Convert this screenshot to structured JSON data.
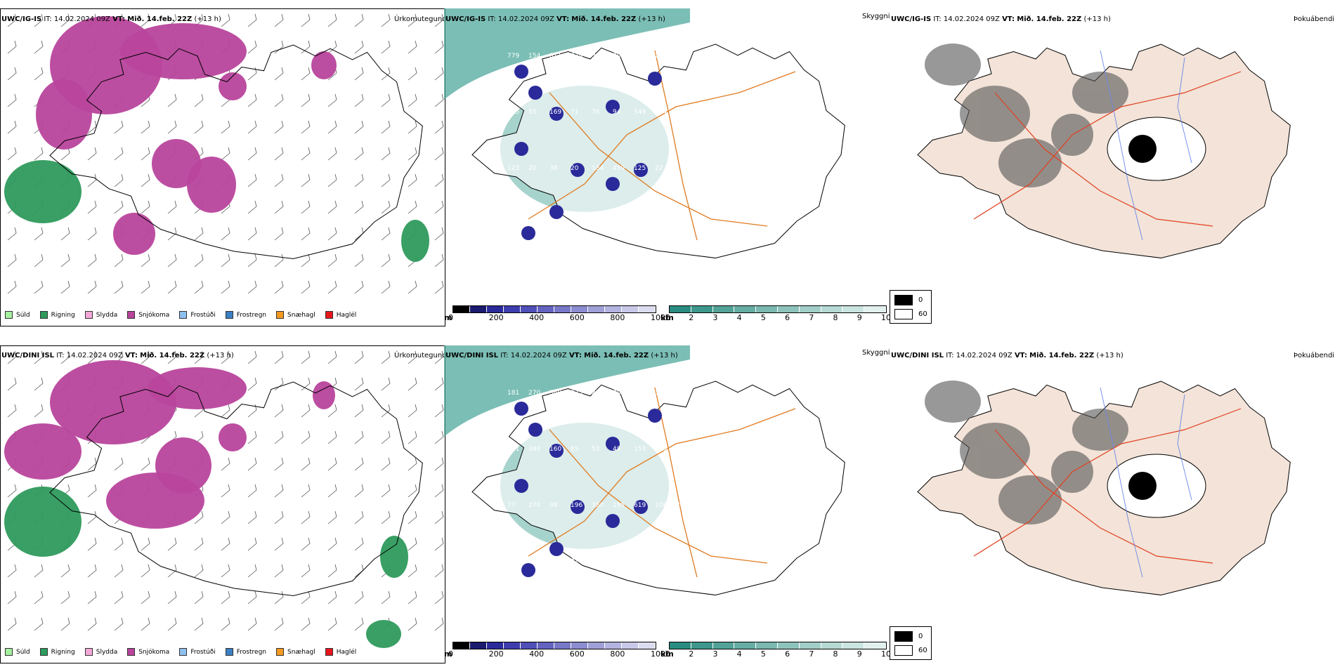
{
  "rows": [
    {
      "model": "UWC/IG-IS",
      "it_label": "IT:",
      "it": "14.02.2024 09Z",
      "vt_label": "VT:",
      "vt": "Mið. 14.feb. 22Z",
      "lead": "(+13 h)",
      "precip_labels": [
        "779",
        "154",
        "811",
        "674",
        "341",
        "203",
        "258",
        "221",
        "162",
        "115",
        "55",
        "169",
        "71",
        "76",
        "94",
        "549",
        "134",
        "87",
        "123",
        "20",
        "38",
        "20",
        "184",
        "459",
        "125",
        "22",
        "18"
      ],
      "ceiling_numbers_count": 27
    },
    {
      "model": "UWC/DINI ISL",
      "it_label": "IT:",
      "it": "14.02.2024 09Z",
      "vt_label": "VT:",
      "vt": "Mið. 14.feb. 22Z",
      "lead": "(+13 h)",
      "precip_labels": [
        "181",
        "270",
        "349",
        "275",
        "278",
        "308",
        "358",
        "321",
        "161",
        "101",
        "340",
        "160",
        "65",
        "53",
        "48",
        "153",
        "158",
        "258",
        "77",
        "270",
        "98",
        "196",
        "380",
        "195",
        "619",
        "108",
        "84",
        "123",
        "121",
        "139",
        "22"
      ]
    }
  ],
  "panel_titles": {
    "precip_type": "Úrkomutegund",
    "visibility": "Skyggni",
    "fog": "Þokuábendi"
  },
  "precip_legend": [
    {
      "label": "Súld",
      "color": "#a6f0a0"
    },
    {
      "label": "Rigning",
      "color": "#2e9a5c"
    },
    {
      "label": "Slydda",
      "color": "#f3a8d8"
    },
    {
      "label": "Snjókoma",
      "color": "#b8449c"
    },
    {
      "label": "Frostúði",
      "color": "#8ec0f0"
    },
    {
      "label": "Frostregn",
      "color": "#3b7fc4"
    },
    {
      "label": "Snæhagl",
      "color": "#f39a20"
    },
    {
      "label": "Haglél",
      "color": "#e8141c"
    }
  ],
  "ceiling_colorbar": {
    "unit": "m",
    "ticks": [
      "0",
      "200",
      "400",
      "600",
      "800",
      "1000"
    ],
    "colors": [
      "#000000",
      "#1a1a6e",
      "#2a2a9a",
      "#3d3dae",
      "#5050b8",
      "#6464c0",
      "#7878c8",
      "#8c8cd0",
      "#a0a0d8",
      "#b4b4e0",
      "#c8c8e8",
      "#dcdcf0"
    ]
  },
  "visibility_colorbar": {
    "unit": "km",
    "ticks": [
      "1",
      "2",
      "3",
      "4",
      "5",
      "6",
      "7",
      "8",
      "9",
      "10"
    ],
    "colors": [
      "#2a8c80",
      "#3e978c",
      "#52a298",
      "#66ada4",
      "#7ab8b0",
      "#8ec3bc",
      "#a2cec8",
      "#b6d9d4",
      "#cae4e0",
      "#e2f0ee"
    ]
  },
  "fog_key": [
    {
      "label": "0",
      "color": "#000000"
    },
    {
      "label": "60",
      "color": "#ffffff"
    }
  ],
  "colors": {
    "rain": "#2e9a5c",
    "snow": "#b8449c",
    "visibility_fill": "#4fa89c",
    "route_orange": "#e07a20",
    "road_red": "#e04020",
    "river_blue": "#6a88e8",
    "land_fog": "#f3e3d8"
  }
}
